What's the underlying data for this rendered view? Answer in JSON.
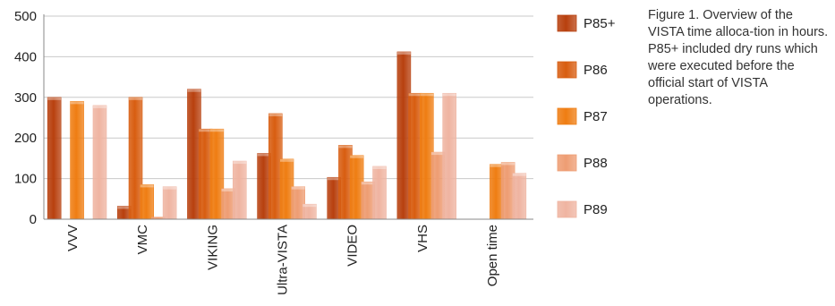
{
  "chart_data": {
    "type": "bar",
    "categories": [
      "VVV",
      "VMC",
      "VIKING",
      "Ultra-VISTA",
      "VIDEO",
      "VHS",
      "Open time"
    ],
    "series": [
      {
        "name": "P85+",
        "values": [
          300,
          32,
          320,
          162,
          103,
          412,
          0
        ]
      },
      {
        "name": "P86",
        "values": [
          0,
          300,
          222,
          260,
          182,
          310,
          0
        ]
      },
      {
        "name": "P87",
        "values": [
          290,
          85,
          222,
          148,
          157,
          310,
          135
        ]
      },
      {
        "name": "P88",
        "values": [
          0,
          5,
          75,
          80,
          92,
          165,
          140
        ]
      },
      {
        "name": "P89",
        "values": [
          280,
          80,
          143,
          37,
          130,
          310,
          113
        ]
      }
    ],
    "ylim": [
      0,
      500
    ],
    "yticks": [
      "0",
      "100",
      "200",
      "300",
      "400",
      "500"
    ],
    "grid": true,
    "legend_position": "right",
    "colors": [
      "#b8400e",
      "#d85d10",
      "#ef7d12",
      "#ee9d73",
      "#efb4a1"
    ]
  },
  "caption": {
    "lead": "Figure 1.",
    "text": "Overview of the VISTA time alloca-tion in hours. P85+ included dry runs which were executed before the official start of VISTA operations."
  }
}
